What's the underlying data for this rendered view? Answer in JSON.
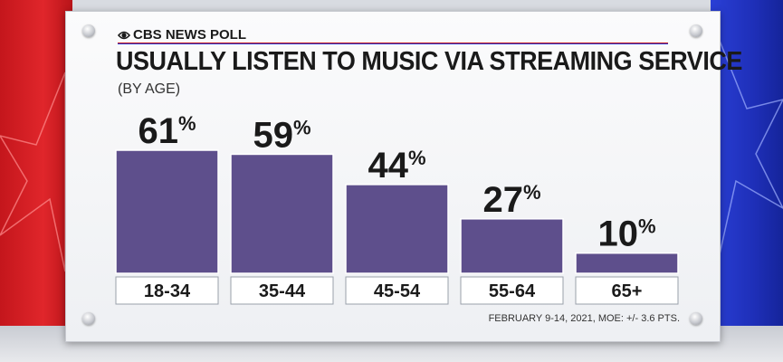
{
  "brand": {
    "logo_text": "CBS NEWS POLL",
    "colors": {
      "red": "#c4161c",
      "blue": "#2a3fd6",
      "bar": "#5e4f8c"
    }
  },
  "title": "USUALLY LISTEN TO MUSIC VIA STREAMING SERVICE",
  "subtitle": "(BY AGE)",
  "footnote": "FEBRUARY 9-14, 2021, MOE: +/- 3.6 PTS.",
  "chart_data": {
    "type": "bar",
    "title": "USUALLY LISTEN TO MUSIC VIA STREAMING SERVICE",
    "subtitle": "(BY AGE)",
    "categories": [
      "18-34",
      "35-44",
      "45-54",
      "55-64",
      "65+"
    ],
    "values": [
      61,
      59,
      44,
      27,
      10
    ],
    "value_suffix": "%",
    "ylim": [
      0,
      61
    ],
    "grid": false,
    "legend": "none"
  }
}
